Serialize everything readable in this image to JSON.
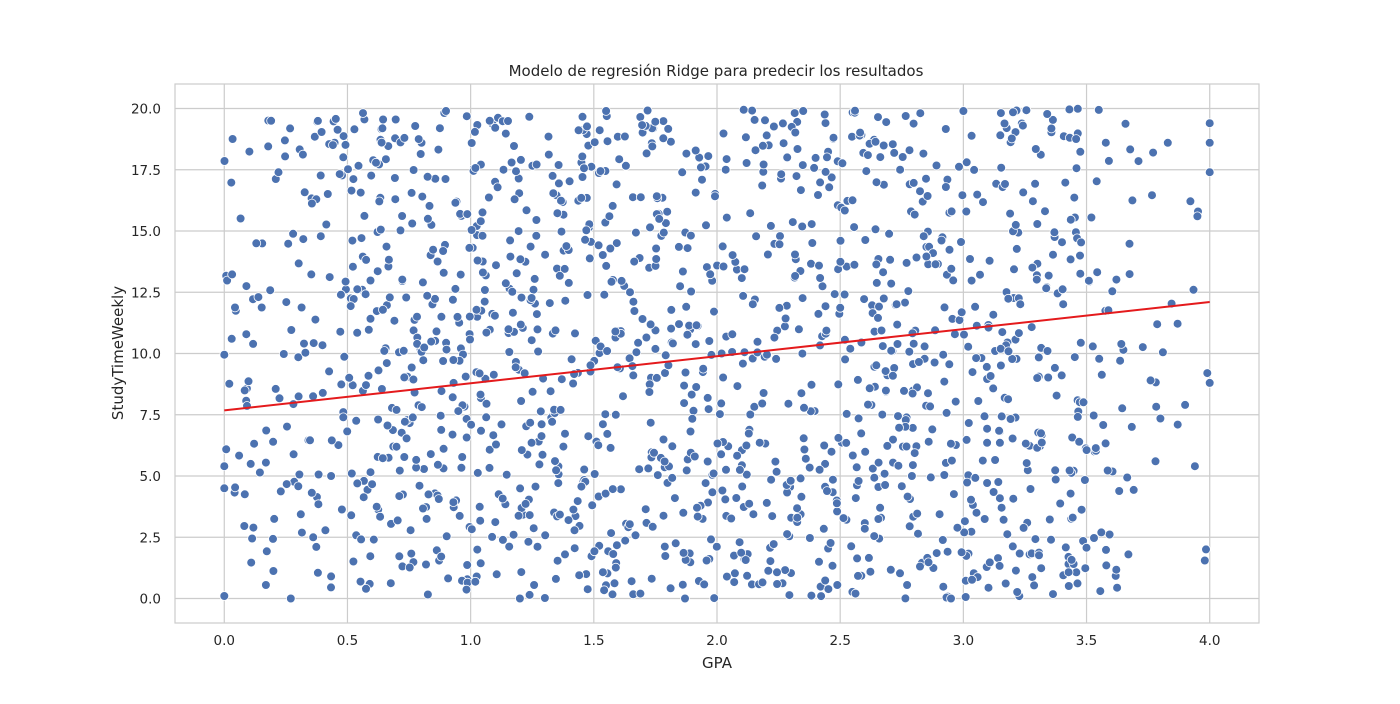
{
  "chart_data": {
    "type": "scatter",
    "title": "Modelo de regresión Ridge para predecir los resultados",
    "xlabel": "GPA",
    "ylabel": "StudyTimeWeekly",
    "xlim": [
      -0.2,
      4.2
    ],
    "ylim": [
      -1.0,
      21.0
    ],
    "xticks": [
      "0.0",
      "0.5",
      "1.0",
      "1.5",
      "2.0",
      "2.5",
      "3.0",
      "3.5",
      "4.0"
    ],
    "yticks": [
      "0.0",
      "2.5",
      "5.0",
      "7.5",
      "10.0",
      "12.5",
      "15.0",
      "17.5",
      "20.0"
    ],
    "grid": true,
    "legend": "none",
    "scatter_series": {
      "color": "#4c72b0",
      "edge_color": "#ffffff",
      "count": 1600,
      "x_range": [
        0.0,
        4.0
      ],
      "y_range": [
        0.0,
        20.0
      ],
      "note_points": [
        {
          "x": 0.0,
          "y": 9.95
        },
        {
          "x": 0.03,
          "y": 10.6
        },
        {
          "x": 0.0,
          "y": 5.4
        },
        {
          "x": 0.0,
          "y": 4.5
        },
        {
          "x": 0.0,
          "y": 0.1
        },
        {
          "x": 0.19,
          "y": 19.5
        },
        {
          "x": 0.22,
          "y": 17.4
        },
        {
          "x": 0.13,
          "y": 14.5
        },
        {
          "x": 0.9,
          "y": 19.9
        },
        {
          "x": 1.55,
          "y": 19.9
        },
        {
          "x": 2.35,
          "y": 19.9
        },
        {
          "x": 3.0,
          "y": 19.9
        },
        {
          "x": 3.95,
          "y": 15.6
        },
        {
          "x": 4.0,
          "y": 19.4
        },
        {
          "x": 4.0,
          "y": 17.4
        },
        {
          "x": 4.0,
          "y": 18.6
        },
        {
          "x": 3.77,
          "y": 18.2
        },
        {
          "x": 3.83,
          "y": 18.6
        },
        {
          "x": 3.9,
          "y": 7.9
        },
        {
          "x": 3.87,
          "y": 7.1
        },
        {
          "x": 3.94,
          "y": 5.4
        },
        {
          "x": 3.98,
          "y": 1.55
        },
        {
          "x": 3.99,
          "y": 9.2
        },
        {
          "x": 4.0,
          "y": 8.8
        },
        {
          "x": 3.78,
          "y": 5.6
        },
        {
          "x": 3.67,
          "y": 1.8
        },
        {
          "x": 3.58,
          "y": 1.35
        },
        {
          "x": 3.56,
          "y": 2.7
        },
        {
          "x": 3.81,
          "y": 10.05
        },
        {
          "x": 3.76,
          "y": 8.9
        },
        {
          "x": 1.2,
          "y": 0.0
        },
        {
          "x": 1.87,
          "y": 0.0
        },
        {
          "x": 2.95,
          "y": 0.0
        },
        {
          "x": 0.27,
          "y": 0.0
        },
        {
          "x": 0.95,
          "y": 7.65
        },
        {
          "x": 2.6,
          "y": 2.85
        }
      ]
    },
    "regression_line": {
      "color": "#e41a1c",
      "x": [
        0.0,
        4.0
      ],
      "y": [
        7.68,
        12.1
      ]
    }
  }
}
